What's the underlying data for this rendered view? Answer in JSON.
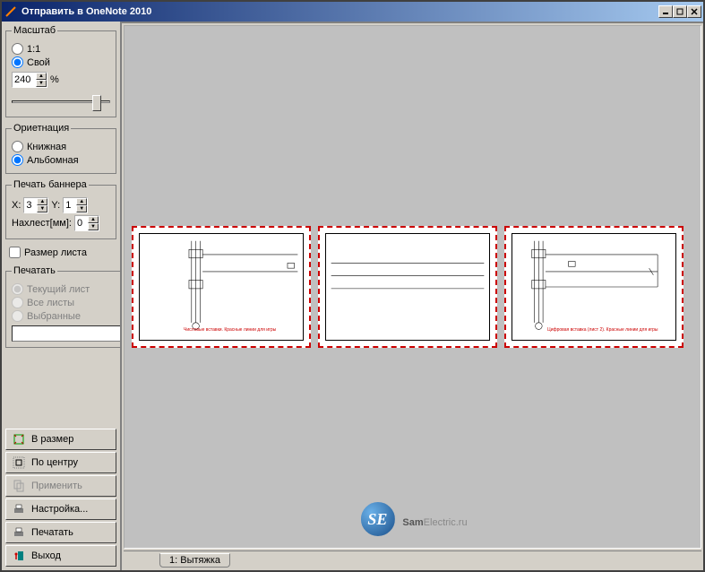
{
  "window": {
    "title": "Отправить в OneNote 2010"
  },
  "scale": {
    "legend": "Масштаб",
    "opt_1_1": "1:1",
    "opt_custom": "Свой",
    "value": "240",
    "percent": "%",
    "selected": "custom",
    "slider_pos_pct": 82
  },
  "orientation": {
    "legend": "Ориетнация",
    "opt_portrait": "Книжная",
    "opt_landscape": "Альбомная",
    "selected": "landscape"
  },
  "banner": {
    "legend": "Печать баннера",
    "x_label": "X:",
    "x_value": "3",
    "y_label": "Y:",
    "y_value": "1",
    "overlap_label": "Нахлест[мм]:",
    "overlap_value": "0"
  },
  "page_size": {
    "label": "Размер листа",
    "checked": false
  },
  "print_scope": {
    "legend": "Печатать",
    "opt_current": "Текущий лист",
    "opt_all": "Все листы",
    "opt_selected": "Выбранные",
    "enabled": false,
    "path_value": ""
  },
  "buttons": {
    "fit": "В размер",
    "center": "По центру",
    "apply": "Применить",
    "setup": "Настройка...",
    "print": "Печатать",
    "exit": "Выход"
  },
  "help": "?",
  "tab": {
    "label": "1: Вытяжка"
  },
  "preview": {
    "page_count": 3,
    "border_color": "#cc0000",
    "bg": "#c0c0c0",
    "schematic_text_1": "Числовые вставки.\nКрасные линии для игры",
    "schematic_text_3": "Цифровая вставка (лист 2).\nКрасные линии для игры"
  },
  "watermark": {
    "badge": "SE",
    "text_bold": "Sam",
    "text_rest": "Electric.ru"
  },
  "colors": {
    "titlebar_start": "#0a246a",
    "titlebar_end": "#a6caf0",
    "face": "#d4d0c8",
    "canvas": "#c0c0c0"
  }
}
